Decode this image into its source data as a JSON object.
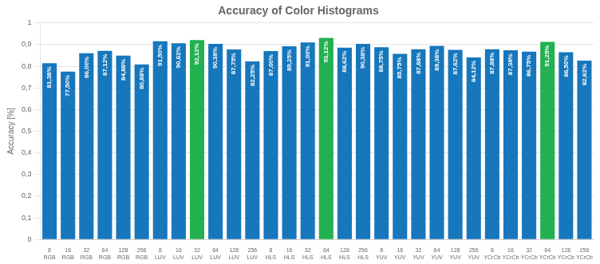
{
  "chart_data": {
    "type": "bar",
    "title": "Accuracy of Color Histograms",
    "ylabel": "Accuracy [%]",
    "categories": [
      "8\nRGB",
      "16\nRGB",
      "32\nRGB",
      "64\nRGB",
      "128\nRGB",
      "256\nRGB",
      "8\nLUV",
      "16\nLUV",
      "32\nLUV",
      "64\nLUV",
      "128\nLUV",
      "256\nLUV",
      "8\nHLS",
      "16\nHLS",
      "32\nHLS",
      "64\nHLS",
      "128\nHLS",
      "256\nHLS",
      "8\nYUV",
      "16\nYUV",
      "32\nYUV",
      "64\nYUV",
      "128\nYUV",
      "256\nYUV",
      "8\nYCrCb",
      "16\nYCrCb",
      "32\nYCrCb",
      "64\nYCrCb",
      "128\nYCrCb",
      "256\nYCrCb"
    ],
    "values": [
      0.8138,
      0.775,
      0.86,
      0.8712,
      0.8488,
      0.8088,
      0.915,
      0.9062,
      0.9212,
      0.9038,
      0.8775,
      0.8225,
      0.87,
      0.8925,
      0.91,
      0.9312,
      0.8862,
      0.9038,
      0.8875,
      0.8575,
      0.8788,
      0.8938,
      0.8762,
      0.8412,
      0.8788,
      0.8738,
      0.8675,
      0.9125,
      0.865,
      0.8262
    ],
    "value_labels": [
      "81,38%",
      "77,50%",
      "86,00%",
      "87,12%",
      "84,88%",
      "80,88%",
      "91,50%",
      "90,62%",
      "92,12%",
      "90,38%",
      "87,75%",
      "82,25%",
      "87,00%",
      "89,25%",
      "91,00%",
      "93,12%",
      "88,62%",
      "90,38%",
      "88,75%",
      "85,75%",
      "87,88%",
      "89,38%",
      "87,62%",
      "84,12%",
      "87,88%",
      "87,38%",
      "86,75%",
      "91,25%",
      "86,50%",
      "82,62%"
    ],
    "data_labels": true,
    "colors": [
      "#1777BC",
      "#1777BC",
      "#1777BC",
      "#1777BC",
      "#1777BC",
      "#1777BC",
      "#1777BC",
      "#1777BC",
      "#22B050",
      "#1777BC",
      "#1777BC",
      "#1777BC",
      "#1777BC",
      "#1777BC",
      "#1777BC",
      "#22B050",
      "#1777BC",
      "#1777BC",
      "#1777BC",
      "#1777BC",
      "#1777BC",
      "#1777BC",
      "#1777BC",
      "#1777BC",
      "#1777BC",
      "#1777BC",
      "#1777BC",
      "#22B050",
      "#1777BC",
      "#1777BC"
    ],
    "ylim": [
      0,
      1.0
    ],
    "yticks": [
      0,
      {
        "value": 0.1,
        "label": "0,1"
      },
      {
        "value": 0.2,
        "label": "0,2"
      },
      {
        "value": 0.3,
        "label": "0,3"
      },
      {
        "value": 0.4,
        "label": "0,4"
      },
      {
        "value": 0.5,
        "label": "0,5"
      },
      {
        "value": 0.6,
        "label": "0,6"
      },
      {
        "value": 0.7,
        "label": "0,7"
      },
      {
        "value": 0.8,
        "label": "0,8"
      },
      {
        "value": 0.9,
        "label": "0,9"
      },
      1.0
    ],
    "grid": true
  }
}
